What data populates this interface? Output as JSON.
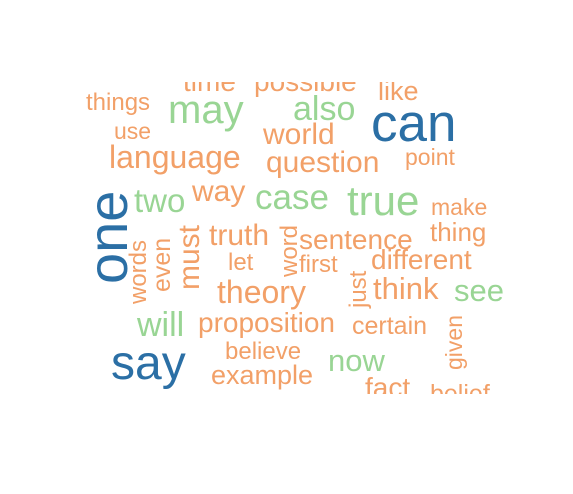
{
  "colors": {
    "orange": "#F2A068",
    "green": "#99D594",
    "blue": "#2B6FA5",
    "background": "#FFFFFF"
  },
  "words": [
    {
      "id": "time",
      "text": "time",
      "color": "orange"
    },
    {
      "id": "possible",
      "text": "possible",
      "color": "orange"
    },
    {
      "id": "like",
      "text": "like",
      "color": "orange"
    },
    {
      "id": "things",
      "text": "things",
      "color": "orange"
    },
    {
      "id": "may",
      "text": "may",
      "color": "green"
    },
    {
      "id": "also",
      "text": "also",
      "color": "green"
    },
    {
      "id": "can",
      "text": "can",
      "color": "blue"
    },
    {
      "id": "use",
      "text": "use",
      "color": "orange"
    },
    {
      "id": "world",
      "text": "world",
      "color": "orange"
    },
    {
      "id": "language",
      "text": "language",
      "color": "orange"
    },
    {
      "id": "question",
      "text": "question",
      "color": "orange"
    },
    {
      "id": "point",
      "text": "point",
      "color": "orange"
    },
    {
      "id": "one",
      "text": "one",
      "color": "blue"
    },
    {
      "id": "two",
      "text": "two",
      "color": "green"
    },
    {
      "id": "way",
      "text": "way",
      "color": "orange"
    },
    {
      "id": "case",
      "text": "case",
      "color": "green"
    },
    {
      "id": "true",
      "text": "true",
      "color": "green"
    },
    {
      "id": "make",
      "text": "make",
      "color": "orange"
    },
    {
      "id": "words",
      "text": "words",
      "color": "orange"
    },
    {
      "id": "even",
      "text": "even",
      "color": "orange"
    },
    {
      "id": "must",
      "text": "must",
      "color": "orange"
    },
    {
      "id": "truth",
      "text": "truth",
      "color": "orange"
    },
    {
      "id": "word",
      "text": "word",
      "color": "orange"
    },
    {
      "id": "sentence",
      "text": "sentence",
      "color": "orange"
    },
    {
      "id": "thing",
      "text": "thing",
      "color": "orange"
    },
    {
      "id": "let",
      "text": "let",
      "color": "orange"
    },
    {
      "id": "first",
      "text": "first",
      "color": "orange"
    },
    {
      "id": "different",
      "text": "different",
      "color": "orange"
    },
    {
      "id": "just",
      "text": "just",
      "color": "orange"
    },
    {
      "id": "theory",
      "text": "theory",
      "color": "orange"
    },
    {
      "id": "think",
      "text": "think",
      "color": "orange"
    },
    {
      "id": "see",
      "text": "see",
      "color": "green"
    },
    {
      "id": "will",
      "text": "will",
      "color": "green"
    },
    {
      "id": "proposition",
      "text": "proposition",
      "color": "orange"
    },
    {
      "id": "certain",
      "text": "certain",
      "color": "orange"
    },
    {
      "id": "given",
      "text": "given",
      "color": "orange"
    },
    {
      "id": "say",
      "text": "say",
      "color": "blue"
    },
    {
      "id": "believe",
      "text": "believe",
      "color": "orange"
    },
    {
      "id": "now",
      "text": "now",
      "color": "green"
    },
    {
      "id": "example",
      "text": "example",
      "color": "orange"
    },
    {
      "id": "fact",
      "text": "fact",
      "color": "orange"
    },
    {
      "id": "belief",
      "text": "belief",
      "color": "orange"
    }
  ]
}
